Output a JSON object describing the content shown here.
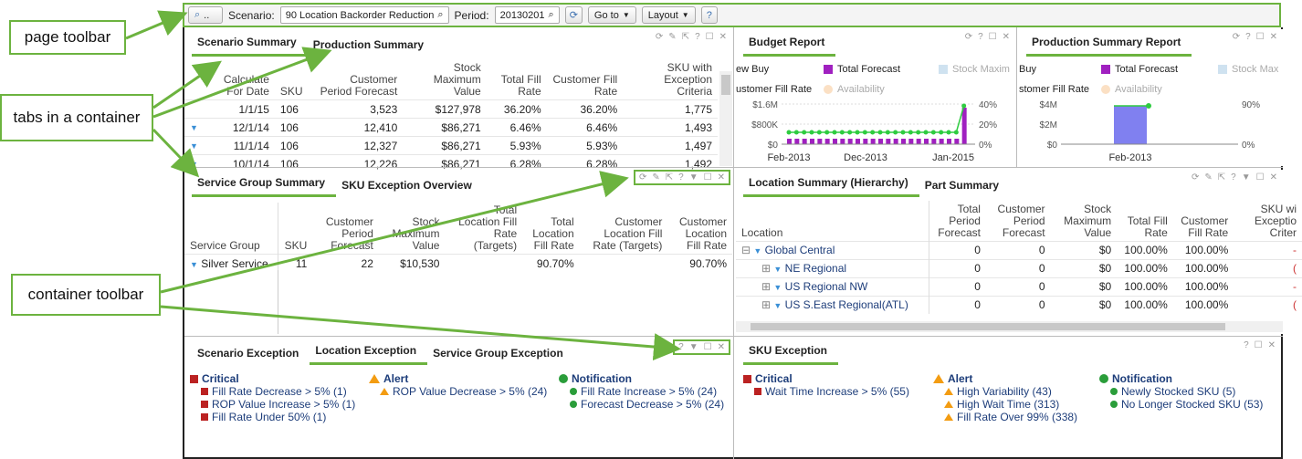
{
  "callouts": {
    "page_toolbar": "page toolbar",
    "tabs": "tabs in a container",
    "container_toolbar": "container toolbar"
  },
  "toolbar": {
    "scenario_label": "Scenario:",
    "scenario_value": "90 Location Backorder Reduction",
    "period_label": "Period:",
    "period_value": "20130201",
    "goto": "Go to",
    "layout": "Layout",
    "help": "?"
  },
  "scenario_summary": {
    "tabs": [
      "Scenario Summary",
      "Production Summary"
    ],
    "headers": [
      "Calculate For Date",
      "SKU",
      "Customer Period Forecast",
      "Stock Maximum Value",
      "Total Fill Rate",
      "Customer Fill Rate",
      "SKU with Exception Criteria"
    ],
    "rows": [
      [
        "1/1/15",
        "106",
        "3,523",
        "$127,978",
        "36.20%",
        "36.20%",
        "1,775"
      ],
      [
        "12/1/14",
        "106",
        "12,410",
        "$86,271",
        "6.46%",
        "6.46%",
        "1,493"
      ],
      [
        "11/1/14",
        "106",
        "12,327",
        "$86,271",
        "5.93%",
        "5.93%",
        "1,497"
      ],
      [
        "10/1/14",
        "106",
        "12,226",
        "$86,271",
        "6.28%",
        "6.28%",
        "1,492"
      ]
    ]
  },
  "budget_report": {
    "tab": "Budget Report",
    "legend": [
      "ew Buy",
      "Total Forecast",
      "Stock Maxim",
      "ustomer Fill Rate",
      "Availability"
    ],
    "yleft": [
      "$1.6M",
      "$800K",
      "$0"
    ],
    "yright": [
      "40%",
      "20%",
      "0%"
    ],
    "xlabels": [
      "Feb-2013",
      "Dec-2013",
      "Jan-2015"
    ]
  },
  "prod_report": {
    "tab": "Production Summary Report",
    "legend": [
      "Buy",
      "Total Forecast",
      "Stock Max",
      "stomer Fill Rate",
      "Availability"
    ],
    "yleft": [
      "$4M",
      "$2M",
      "$0"
    ],
    "yright": [
      "90%",
      "0%"
    ],
    "xlabels": [
      "Feb-2013"
    ]
  },
  "service_group": {
    "tabs": [
      "Service Group Summary",
      "SKU Exception Overview"
    ],
    "headers": [
      "Service Group",
      "SKU",
      "Customer Period Forecast",
      "Stock Maximum Value",
      "Total Location Fill Rate (Targets)",
      "Total Location Fill Rate",
      "Customer Location Fill Rate (Targets)",
      "Customer Location Fill Rate"
    ],
    "rows": [
      [
        "Silver Service",
        "11",
        "22",
        "$10,530",
        "",
        "90.70%",
        "",
        "90.70%"
      ]
    ]
  },
  "location_summary": {
    "tabs": [
      "Location Summary (Hierarchy)",
      "Part Summary"
    ],
    "headers": [
      "Location",
      "Total Period Forecast",
      "Customer Period Forecast",
      "Stock Maximum Value",
      "Total Fill Rate",
      "Customer Fill Rate",
      "SKU wi Exceptio Criter"
    ],
    "rows": [
      [
        "Global Central",
        "0",
        "0",
        "$0",
        "100.00%",
        "100.00%",
        "-"
      ],
      [
        "NE Regional",
        "0",
        "0",
        "$0",
        "100.00%",
        "100.00%",
        "("
      ],
      [
        "US Regional NW",
        "0",
        "0",
        "$0",
        "100.00%",
        "100.00%",
        "-"
      ],
      [
        "US S.East Regional(ATL)",
        "0",
        "0",
        "$0",
        "100.00%",
        "100.00%",
        "("
      ]
    ]
  },
  "exceptions_left": {
    "tabs": [
      "Scenario Exception",
      "Location Exception",
      "Service Group Exception"
    ],
    "critical": {
      "title": "Critical",
      "items": [
        "Fill Rate Decrease > 5% (1)",
        "ROP Value Increase > 5% (1)",
        "Fill Rate Under 50% (1)"
      ]
    },
    "alert": {
      "title": "Alert",
      "items": [
        "ROP Value Decrease > 5% (24)"
      ]
    },
    "notification": {
      "title": "Notification",
      "items": [
        "Fill Rate Increase > 5% (24)",
        "Forecast Decrease > 5% (24)"
      ]
    }
  },
  "exceptions_right": {
    "tab": "SKU Exception",
    "critical": {
      "title": "Critical",
      "items": [
        "Wait Time Increase > 5% (55)"
      ]
    },
    "alert": {
      "title": "Alert",
      "items": [
        "High Variability (43)",
        "High Wait Time (313)",
        "Fill Rate Over 99% (338)"
      ]
    },
    "notification": {
      "title": "Notification",
      "items": [
        "Newly Stocked SKU (5)",
        "No Longer Stocked SKU (53)"
      ]
    }
  },
  "colors": {
    "accent": "#6cb33f",
    "critical": "#b22222",
    "alert": "#f39c12",
    "notification": "#2a9d3a",
    "forecast": "#a020c0",
    "fill_line": "#2ecc40"
  }
}
